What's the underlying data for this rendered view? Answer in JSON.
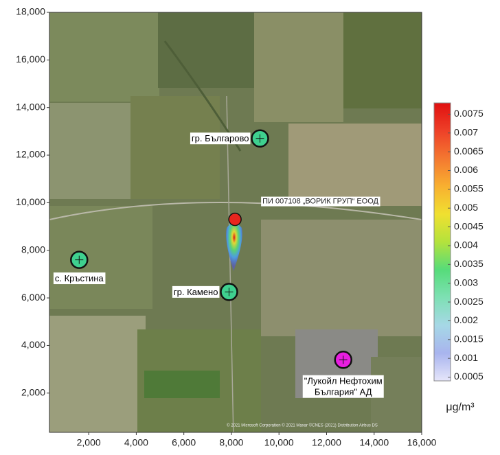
{
  "chart_data": {
    "type": "map",
    "xlim": [
      350,
      16000
    ],
    "ylim": [
      350,
      18000
    ],
    "xticks": [
      {
        "value": 2000,
        "label": "2,000"
      },
      {
        "value": 4000,
        "label": "4,000"
      },
      {
        "value": 6000,
        "label": "6,000"
      },
      {
        "value": 8000,
        "label": "8,000"
      },
      {
        "value": 10000,
        "label": "10,000"
      },
      {
        "value": 12000,
        "label": "12,000"
      },
      {
        "value": 14000,
        "label": "14,000"
      },
      {
        "value": 16000,
        "label": "16,000"
      }
    ],
    "yticks": [
      {
        "value": 2000,
        "label": "2,000"
      },
      {
        "value": 4000,
        "label": "4,000"
      },
      {
        "value": 6000,
        "label": "6,000"
      },
      {
        "value": 8000,
        "label": "8,000"
      },
      {
        "value": 10000,
        "label": "10,000"
      },
      {
        "value": 12000,
        "label": "12,000"
      },
      {
        "value": 14000,
        "label": "14,000"
      },
      {
        "value": 16000,
        "label": "16,000"
      },
      {
        "value": 18000,
        "label": "18,000"
      }
    ],
    "markers": [
      {
        "label": [
          "гр. Българово"
        ],
        "x": 9200,
        "y": 12700,
        "color": "#3fd08f"
      },
      {
        "label": [
          "с. Кръстина"
        ],
        "x": 1600,
        "y": 7600,
        "color": "#3fd08f"
      },
      {
        "label": [
          "гр. Камено"
        ],
        "x": 7900,
        "y": 6250,
        "color": "#3fd08f"
      },
      {
        "label": [
          "\"Лукойл Нефтохим",
          "България\" АД"
        ],
        "x": 12700,
        "y": 3400,
        "color": "#e81ee0"
      }
    ],
    "source": {
      "label": "ПИ 007108 „ВОРИК ГРУП“ ЕООД",
      "x": 8150,
      "y": 9300,
      "color": "#e8261e"
    },
    "colorbar": {
      "lim": [
        0.0004,
        0.0078
      ],
      "ticks": [
        0.0005,
        0.001,
        0.0015,
        0.002,
        0.0025,
        0.003,
        0.0035,
        0.004,
        0.0045,
        0.005,
        0.0055,
        0.006,
        0.0065,
        0.007,
        0.0075
      ],
      "colors": [
        "#e6e6fa",
        "#a8b4ee",
        "#a6d8e6",
        "#7ee0b4",
        "#56dc7a",
        "#b4e23c",
        "#f0e030",
        "#f8b030",
        "#f47830",
        "#ee4028",
        "#e01010"
      ],
      "unit": "μg/m³"
    },
    "attribution": "© 2021 Microsoft Corporation © 2021 Maxar ©CNES (2021) Distribution Airbus DS"
  }
}
